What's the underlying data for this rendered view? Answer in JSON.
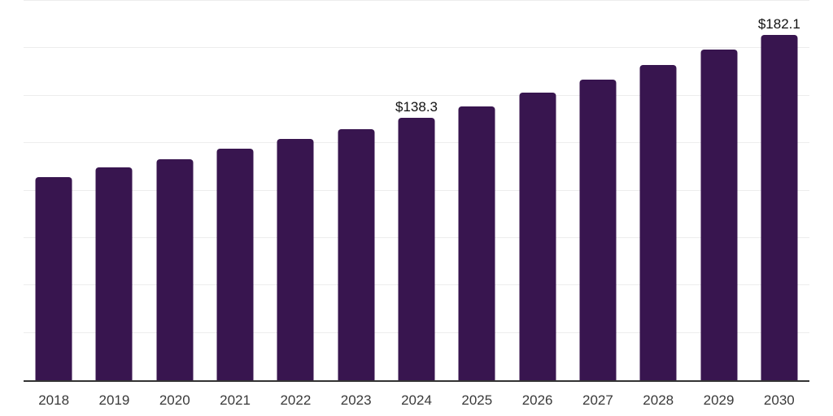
{
  "chart_data": {
    "type": "bar",
    "title": "",
    "xlabel": "",
    "ylabel": "",
    "categories": [
      "2018",
      "2019",
      "2020",
      "2021",
      "2022",
      "2023",
      "2024",
      "2025",
      "2026",
      "2027",
      "2028",
      "2029",
      "2030"
    ],
    "values": [
      107.2,
      112.1,
      116.3,
      122.0,
      127.1,
      132.4,
      138.3,
      144.5,
      151.5,
      158.6,
      166.1,
      174.5,
      182.1
    ],
    "data_labels": {
      "2024": "$138.3",
      "2030": "$182.1"
    },
    "ylim": [
      0,
      200
    ],
    "gridline_step": 25,
    "grid": true,
    "legend": "none",
    "y_tick_labels_visible": false,
    "colors": {
      "bar_fill": "#38154F",
      "gridline": "#ededed",
      "axis_line": "#333333",
      "data_label_text": "#111111",
      "x_tick_text": "#3a3a3a",
      "background": "#ffffff"
    }
  }
}
